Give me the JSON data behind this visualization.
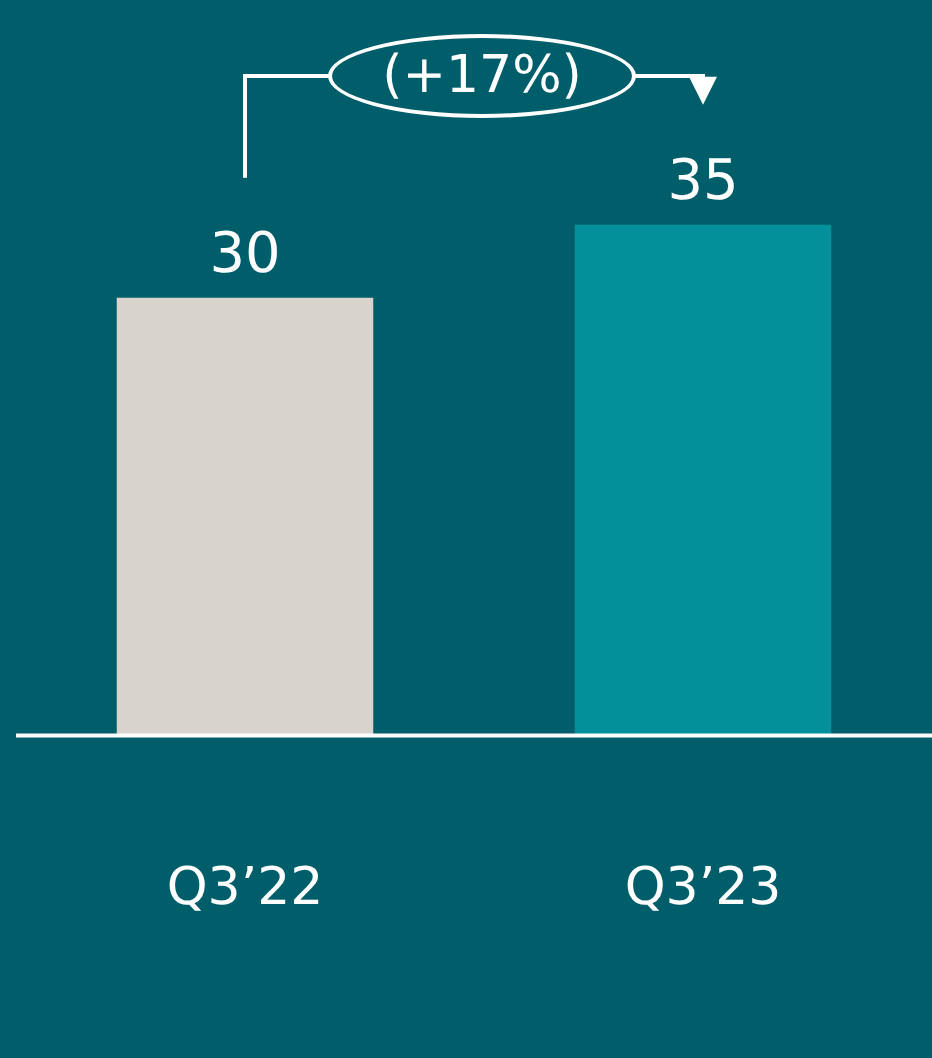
{
  "chart_data": {
    "type": "bar",
    "categories": [
      "Q3’22",
      "Q3’23"
    ],
    "values": [
      30,
      35
    ],
    "colors": [
      "#d9d3cd",
      "#03909a"
    ],
    "data_labels": true,
    "grid": false,
    "legend": false,
    "annotations": [
      "(+17%)"
    ]
  }
}
